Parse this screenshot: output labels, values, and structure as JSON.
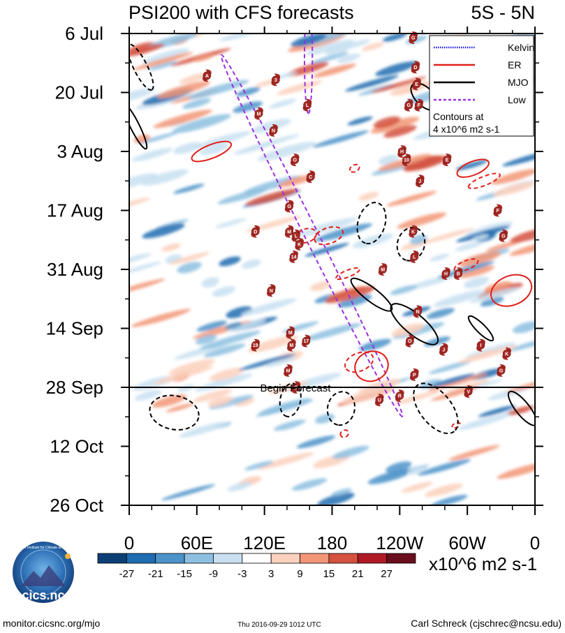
{
  "chart_data": {
    "type": "heatmap",
    "title": "PSI200 with CFS forecasts",
    "region": "5S - 5N",
    "x_ticks": [
      "0",
      "60E",
      "120E",
      "180",
      "120W",
      "60W",
      "0"
    ],
    "x_range_deg_east": [
      0,
      360
    ],
    "y_ticks": [
      "6 Jul",
      "20 Jul",
      "3 Aug",
      "17 Aug",
      "31 Aug",
      "14 Sep",
      "28 Sep",
      "12 Oct",
      "26 Oct"
    ],
    "y_range_days_from_6_jul": [
      0,
      112
    ],
    "forecast_line_day": 84,
    "forecast_label": "Begin Forecast",
    "legend": {
      "items": [
        {
          "label": "Kelvin",
          "color": "#1a1ae6",
          "dash": false
        },
        {
          "label": "ER",
          "color": "#e0201a",
          "dash": false
        },
        {
          "label": "MJO",
          "color": "#000000",
          "dash": false
        },
        {
          "label": "Low",
          "color": "#9b2fe0",
          "dash": true
        }
      ],
      "note_line1": "Contours at",
      "note_line2": "4 x10^6 m2 s-1",
      "placement": "top-right"
    },
    "colorbar": {
      "ticks": [
        "-27",
        "-21",
        "-15",
        "-9",
        "-3",
        "3",
        "9",
        "15",
        "21",
        "27"
      ],
      "colors": [
        "#0d3f77",
        "#1f6cb0",
        "#4c93c9",
        "#8dbfe0",
        "#c8e0f1",
        "#ffffff",
        "#fbd0bc",
        "#f29677",
        "#d5523f",
        "#b01a27",
        "#6a0d1c"
      ],
      "units": "x10^6 m2 s-1"
    },
    "contours": [
      {
        "mode": "Low",
        "lon": 159,
        "day": 6,
        "dlon": 3.5,
        "dday": 13,
        "tilt": 0,
        "dash": true
      },
      {
        "mode": "Low",
        "lon": 162,
        "day": 48,
        "dlon": 6,
        "dday": 48,
        "tilt": -0.5,
        "dash": true
      },
      {
        "mode": "ER",
        "lon": 73,
        "day": 28,
        "dlon": 6,
        "dday": 5,
        "tilt": 2.5,
        "dash": false
      },
      {
        "mode": "ER",
        "lon": 177,
        "day": 48,
        "dlon": 7,
        "dday": 3.5,
        "tilt": 3,
        "dash": true
      },
      {
        "mode": "ER",
        "lon": 157,
        "day": 48,
        "dlon": 6,
        "dday": 2.5,
        "tilt": 3,
        "dash": true
      },
      {
        "mode": "ER",
        "lon": 200,
        "day": 32,
        "dlon": 3,
        "dday": 1.2,
        "tilt": 2,
        "dash": true
      },
      {
        "mode": "ER",
        "lon": 305,
        "day": 32,
        "dlon": 6,
        "dday": 4,
        "tilt": 2.5,
        "dash": false
      },
      {
        "mode": "ER",
        "lon": 315,
        "day": 35,
        "dlon": 4,
        "dday": 4,
        "tilt": 2.5,
        "dash": true
      },
      {
        "mode": "ER",
        "lon": 299,
        "day": 55,
        "dlon": 4,
        "dday": 3,
        "tilt": 2.5,
        "dash": true
      },
      {
        "mode": "ER",
        "lon": 194,
        "day": 57,
        "dlon": 3,
        "dday": 3,
        "tilt": 2.5,
        "dash": true
      },
      {
        "mode": "ER",
        "lon": 339,
        "day": 61,
        "dlon": 13,
        "dday": 5,
        "tilt": 2.5,
        "dash": false
      },
      {
        "mode": "ER",
        "lon": 215,
        "day": 79,
        "dlon": 13,
        "dday": 4,
        "tilt": 2.5,
        "dash": false
      },
      {
        "mode": "ER",
        "lon": 204,
        "day": 78,
        "dlon": 8,
        "dday": 3.5,
        "tilt": 2.5,
        "dash": true
      },
      {
        "mode": "ER",
        "lon": 191,
        "day": 95,
        "dlon": 3,
        "dday": 1,
        "tilt": 2,
        "dash": true
      },
      {
        "mode": "ER",
        "lon": 290,
        "day": 93,
        "dlon": 2,
        "dday": 1,
        "tilt": 2,
        "dash": true
      },
      {
        "mode": "MJO",
        "lon": 215,
        "day": 45,
        "dlon": 12,
        "dday": 5,
        "tilt": 0.3,
        "dash": true
      },
      {
        "mode": "MJO",
        "lon": 250,
        "day": 50,
        "dlon": 12,
        "dday": 4,
        "tilt": 0.3,
        "dash": true
      },
      {
        "mode": "MJO",
        "lon": 215,
        "day": 62,
        "dlon": 6,
        "dday": 6,
        "tilt": -1.3,
        "dash": false
      },
      {
        "mode": "MJO",
        "lon": 253,
        "day": 69,
        "dlon": 9,
        "dday": 7,
        "tilt": -1.2,
        "dash": false
      },
      {
        "mode": "MJO",
        "lon": 312,
        "day": 70,
        "dlon": 4,
        "dday": 4,
        "tilt": -1,
        "dash": false
      },
      {
        "mode": "MJO",
        "lon": 262,
        "day": 15,
        "dlon": 8,
        "dday": 4,
        "tilt": -1,
        "dash": false
      },
      {
        "mode": "MJO",
        "lon": 5,
        "day": 22,
        "dlon": 4,
        "dday": 6,
        "tilt": -0.5,
        "dash": false
      },
      {
        "mode": "MJO",
        "lon": 10,
        "day": 8,
        "dlon": 6,
        "dday": 6,
        "tilt": -0.5,
        "dash": true
      },
      {
        "mode": "MJO",
        "lon": 40,
        "day": 90,
        "dlon": 22,
        "dday": 4,
        "tilt": 0.2,
        "dash": true
      },
      {
        "mode": "MJO",
        "lon": 143,
        "day": 87,
        "dlon": 9,
        "dday": 4,
        "tilt": 0.2,
        "dash": true
      },
      {
        "mode": "MJO",
        "lon": 188,
        "day": 89,
        "dlon": 12,
        "dday": 4,
        "tilt": 0.2,
        "dash": true
      },
      {
        "mode": "MJO",
        "lon": 272,
        "day": 89,
        "dlon": 14,
        "dday": 7,
        "tilt": -0.8,
        "dash": true
      },
      {
        "mode": "MJO",
        "lon": 349,
        "day": 89,
        "dlon": 6,
        "dday": 5,
        "tilt": -0.8,
        "dash": false
      }
    ],
    "storms": [
      {
        "id": "A",
        "lon": 69,
        "day": 10
      },
      {
        "id": "3",
        "lon": 130,
        "day": 11
      },
      {
        "id": "M",
        "lon": 115,
        "day": 19
      },
      {
        "id": "L",
        "lon": 158,
        "day": 17
      },
      {
        "id": "N",
        "lon": 128,
        "day": 23
      },
      {
        "id": "O",
        "lon": 147,
        "day": 30
      },
      {
        "id": "C",
        "lon": 161,
        "day": 34
      },
      {
        "id": "G",
        "lon": 142,
        "day": 41
      },
      {
        "id": "D",
        "lon": 112,
        "day": 47
      },
      {
        "id": "M",
        "lon": 142,
        "day": 47
      },
      {
        "id": "L",
        "lon": 148,
        "day": 48
      },
      {
        "id": "K",
        "lon": 151,
        "day": 50
      },
      {
        "id": "14",
        "lon": 146,
        "day": 53
      },
      {
        "id": "N",
        "lon": 126,
        "day": 61
      },
      {
        "id": "M",
        "lon": 143,
        "day": 71
      },
      {
        "id": "19",
        "lon": 112,
        "day": 74
      },
      {
        "id": "M",
        "lon": 144,
        "day": 74
      },
      {
        "id": "17",
        "lon": 157,
        "day": 73
      },
      {
        "id": "M",
        "lon": 141,
        "day": 80
      },
      {
        "id": "B",
        "lon": 148,
        "day": 84
      },
      {
        "id": "M",
        "lon": 225,
        "day": 56
      },
      {
        "id": "K",
        "lon": 252,
        "day": 47
      },
      {
        "id": "L",
        "lon": 253,
        "day": 53
      },
      {
        "id": "N",
        "lon": 256,
        "day": 66
      },
      {
        "id": "O",
        "lon": 249,
        "day": 73
      },
      {
        "id": "P",
        "lon": 253,
        "day": 81
      },
      {
        "id": "R",
        "lon": 240,
        "day": 86
      },
      {
        "id": "U",
        "lon": 222,
        "day": 87
      },
      {
        "id": "H",
        "lon": 242,
        "day": 28
      },
      {
        "id": "10",
        "lon": 246,
        "day": 30
      },
      {
        "id": "J",
        "lon": 258,
        "day": 35
      },
      {
        "id": "E",
        "lon": 282,
        "day": 30
      },
      {
        "id": "G",
        "lon": 248,
        "day": 17
      },
      {
        "id": "F",
        "lon": 257,
        "day": 17
      },
      {
        "id": "E",
        "lon": 255,
        "day": 12
      },
      {
        "id": "D",
        "lon": 254,
        "day": 8
      },
      {
        "id": "G",
        "lon": 252,
        "day": 1
      },
      {
        "id": "H",
        "lon": 281,
        "day": 57
      },
      {
        "id": "B",
        "lon": 292,
        "day": 57
      },
      {
        "id": "F",
        "lon": 327,
        "day": 42
      },
      {
        "id": "G",
        "lon": 332,
        "day": 48
      },
      {
        "id": "I",
        "lon": 312,
        "day": 74
      },
      {
        "id": "K",
        "lon": 335,
        "day": 76
      },
      {
        "id": "J",
        "lon": 279,
        "day": 75
      },
      {
        "id": "G",
        "lon": 330,
        "day": 80
      },
      {
        "id": "V",
        "lon": 301,
        "day": 85
      }
    ]
  },
  "footer": {
    "logo_text": "cics.nc",
    "logo_ring": "Cooperative Institute for Climate and Satellites",
    "left": "monitor.cicsnc.org/mjo",
    "center": "Thu 2016-09-29 1012 UTC",
    "right": "Carl Schreck (cjschrec@ncsu.edu)"
  },
  "colors": {
    "forecast_line": "#000000",
    "storm_fill": "#a82a25"
  }
}
